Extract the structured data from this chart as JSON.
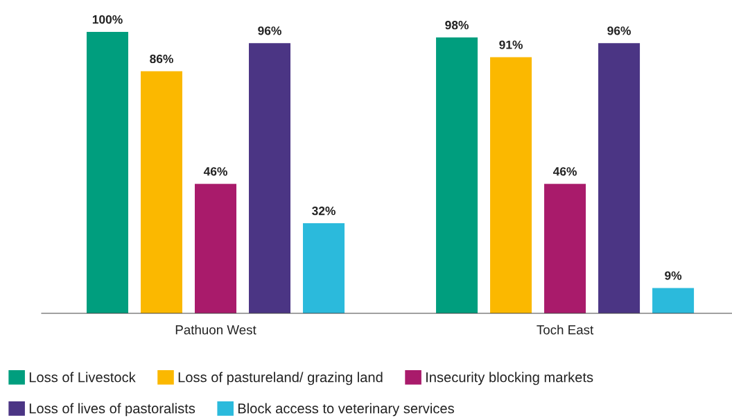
{
  "chart_data": {
    "type": "bar",
    "categories": [
      "Pathuon West",
      "Toch East"
    ],
    "series": [
      {
        "name": "Loss of Livestock",
        "color": "#009e7e",
        "values": [
          100,
          98
        ],
        "value_labels": [
          "100%",
          "98%"
        ]
      },
      {
        "name": "Loss of pastureland/ grazing land",
        "color": "#fbb800",
        "values": [
          86,
          91
        ],
        "value_labels": [
          "86%",
          "91%"
        ]
      },
      {
        "name": "Insecurity blocking markets",
        "color": "#a91b6b",
        "values": [
          46,
          46
        ],
        "value_labels": [
          "46%",
          "46%"
        ]
      },
      {
        "name": "Loss of lives of pastoralists",
        "color": "#4b3584",
        "values": [
          96,
          96
        ],
        "value_labels": [
          "96%",
          "96%"
        ]
      },
      {
        "name": "Block access to veterinary services",
        "color": "#2bbadc",
        "values": [
          32,
          9
        ],
        "value_labels": [
          "32%",
          "9%"
        ]
      }
    ],
    "legend": "bottom"
  }
}
